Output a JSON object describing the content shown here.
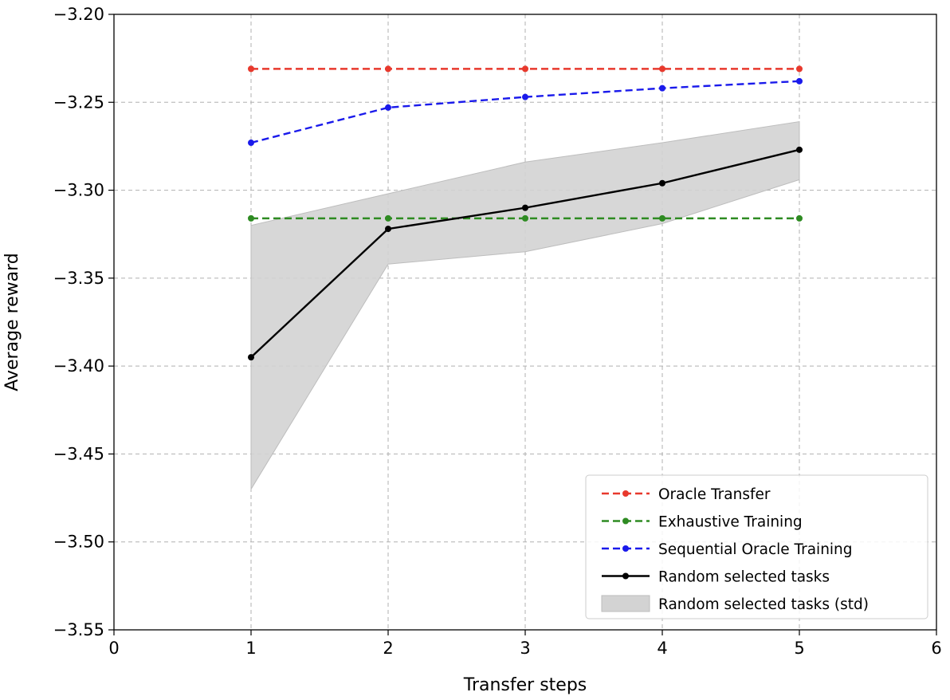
{
  "chart_data": {
    "type": "line",
    "title": "",
    "xlabel": "Transfer steps",
    "ylabel": "Average reward",
    "xlim": [
      0,
      6
    ],
    "ylim": [
      -3.55,
      -3.2
    ],
    "x_ticks": [
      0,
      1,
      2,
      3,
      4,
      5,
      6
    ],
    "x_tick_labels": [
      "0",
      "1",
      "2",
      "3",
      "4",
      "5",
      "6"
    ],
    "y_ticks": [
      -3.55,
      -3.5,
      -3.45,
      -3.4,
      -3.35,
      -3.3,
      -3.25,
      -3.2
    ],
    "y_tick_labels": [
      "−3.55",
      "−3.50",
      "−3.45",
      "−3.40",
      "−3.35",
      "−3.30",
      "−3.25",
      "−3.20"
    ],
    "grid": true,
    "grid_style": "dashed",
    "legend_position": "lower-right",
    "x": [
      1,
      2,
      3,
      4,
      5
    ],
    "series": [
      {
        "name": "Oracle Transfer",
        "values": [
          -3.231,
          -3.231,
          -3.231,
          -3.231,
          -3.231
        ],
        "color": "#e8392d",
        "dashed": true,
        "marker": "circle"
      },
      {
        "name": "Exhaustive Training",
        "values": [
          -3.316,
          -3.316,
          -3.316,
          -3.316,
          -3.316
        ],
        "color": "#2e8b22",
        "dashed": true,
        "marker": "circle"
      },
      {
        "name": "Sequential Oracle Training",
        "values": [
          -3.273,
          -3.253,
          -3.247,
          -3.242,
          -3.238
        ],
        "color": "#1a1aeb",
        "dashed": true,
        "marker": "circle"
      },
      {
        "name": "Random selected tasks",
        "values": [
          -3.395,
          -3.322,
          -3.31,
          -3.296,
          -3.277
        ],
        "color": "#000000",
        "dashed": false,
        "marker": "circle"
      }
    ],
    "band": {
      "name": "Random selected tasks (std)",
      "lower": [
        -3.47,
        -3.342,
        -3.335,
        -3.319,
        -3.294
      ],
      "upper": [
        -3.32,
        -3.302,
        -3.284,
        -3.273,
        -3.261
      ],
      "color": "#d3d3d3"
    }
  }
}
